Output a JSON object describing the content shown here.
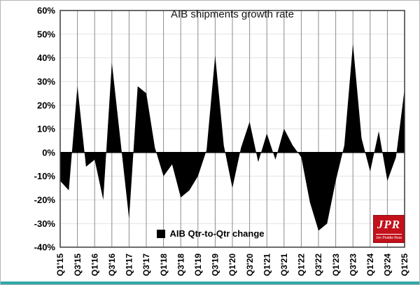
{
  "chart_data": {
    "type": "area",
    "title": "AIB shipments growth rate",
    "legend": "AIB Qtr-to-Qtr change",
    "series_color": "#000000",
    "categories": [
      "Q1'15",
      "Q2'15",
      "Q3'15",
      "Q4'15",
      "Q1'16",
      "Q2'16",
      "Q3'16",
      "Q4'16",
      "Q1'17",
      "Q2'17",
      "Q3'17",
      "Q4'17",
      "Q1'18",
      "Q2'18",
      "Q3'18",
      "Q4'18",
      "Q1'19",
      "Q2'19",
      "Q3'19",
      "Q4'19",
      "Q1'20",
      "Q2'20",
      "Q3'20",
      "Q4'20",
      "Q1'21",
      "Q2'21",
      "Q3'21",
      "Q4'21",
      "Q1'22",
      "Q2'22",
      "Q3'22",
      "Q4'22",
      "Q1'23",
      "Q2'23",
      "Q3'23",
      "Q4'23",
      "Q1'24",
      "Q2'24",
      "Q3'24",
      "Q4'24",
      "Q1'25"
    ],
    "values": [
      -12,
      -16,
      28,
      -6,
      -3,
      -20,
      38,
      5,
      -28,
      28,
      25,
      2,
      -10,
      -5,
      -19,
      -16,
      -10,
      1,
      41,
      3,
      -15,
      2,
      13,
      -4,
      8,
      -3,
      10,
      3,
      -2,
      -21,
      -33,
      -30,
      -12,
      3,
      46,
      6,
      -8,
      9,
      -12,
      -2,
      27
    ],
    "y_ticks": [
      60,
      50,
      40,
      30,
      20,
      10,
      0,
      -10,
      -20,
      -30,
      -40
    ],
    "y_tick_suffix": "%",
    "ylim": [
      -40,
      60
    ],
    "x_tick_interval": 2,
    "grid": true,
    "legend_position": "bottom-center"
  },
  "logo": {
    "text": "JPR",
    "subtext": "Jon Peddie Research",
    "color": "#c3111c"
  },
  "accent_bar_color": "#2fa8a8"
}
